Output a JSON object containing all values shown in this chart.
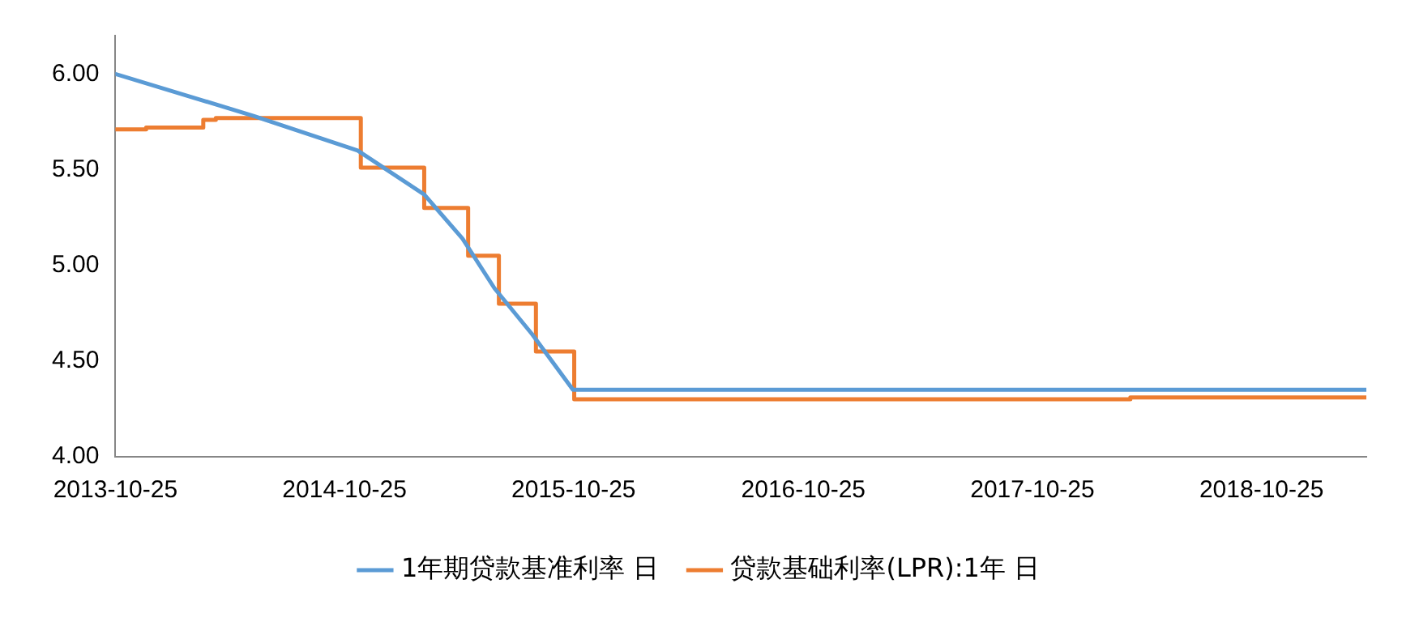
{
  "chart_data": {
    "type": "line",
    "marker": "none",
    "legend": "bottom",
    "xlim": [
      "2013-10-25",
      "2019-04-10"
    ],
    "xticks": [
      "2013-10-25",
      "2014-10-25",
      "2015-10-25",
      "2016-10-25",
      "2017-10-25",
      "2018-10-25"
    ],
    "ylim": [
      4,
      6.2
    ],
    "yticks": [
      {
        "value": 4,
        "label": "4.00"
      },
      {
        "value": 4.5,
        "label": "4.50"
      },
      {
        "value": 5,
        "label": "5.00"
      },
      {
        "value": 5.5,
        "label": "5.50"
      },
      {
        "value": 6,
        "label": "6.00"
      }
    ],
    "series": [
      {
        "name": "1年期贷款基准利率 日",
        "color": "#5b9bd5",
        "type": "line",
        "x": [
          "2013-10-25",
          "2014-06-03",
          "2014-11-15",
          "2015-03-01",
          "2015-05-01",
          "2015-06-21",
          "2015-08-20",
          "2015-10-24",
          "2019-04-10"
        ],
        "values": [
          6.0,
          5.78,
          5.6,
          5.37,
          5.14,
          4.88,
          4.64,
          4.35,
          4.35
        ]
      },
      {
        "name": "贷款基础利率(LPR):1年 日",
        "color": "#ed7d31",
        "type": "step",
        "x": [
          "2013-10-25",
          "2013-12-13",
          "2014-03-14",
          "2014-04-03",
          "2014-11-20",
          "2015-03-01",
          "2015-05-10",
          "2015-06-28",
          "2015-08-26",
          "2015-10-26",
          "2018-03-30",
          "2019-04-10"
        ],
        "values": [
          5.71,
          5.72,
          5.76,
          5.77,
          5.51,
          5.3,
          5.05,
          4.8,
          4.55,
          4.3,
          4.31,
          4.31
        ]
      }
    ]
  }
}
